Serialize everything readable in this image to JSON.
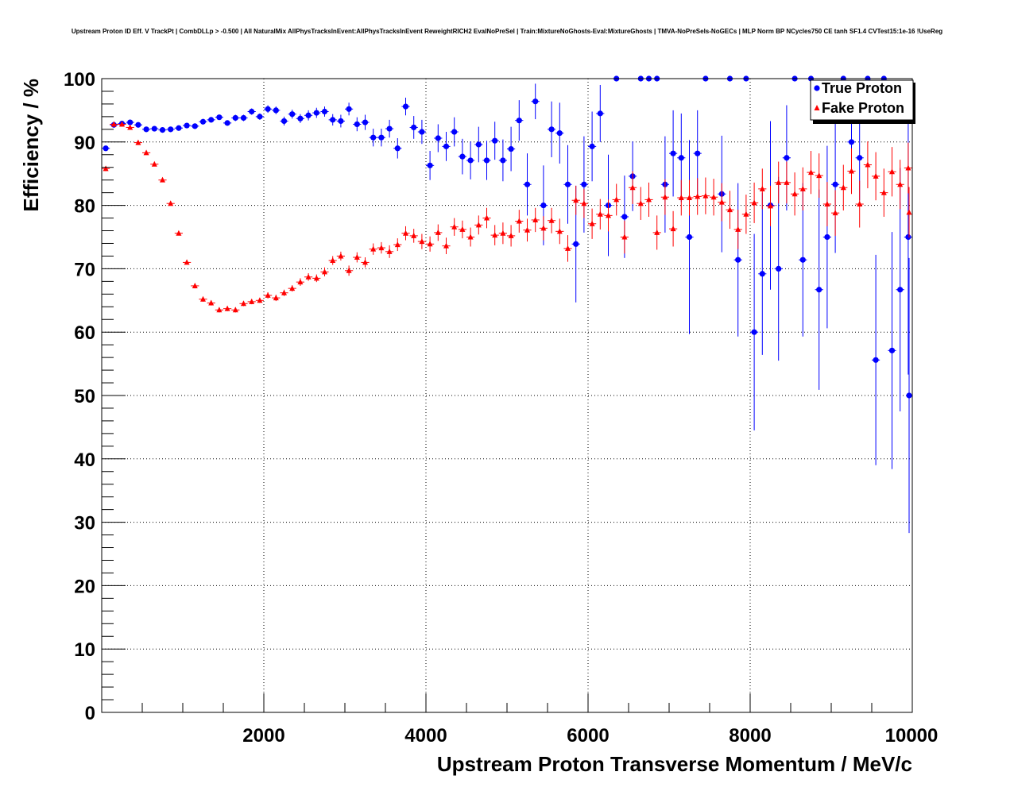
{
  "chart_data": {
    "type": "scatter",
    "title": "Upstream Proton ID Eff. V TrackPt | CombDLLp > -0.500 | All NaturalMix AllPhysTracksInEvent:AllPhysTracksInEvent ReweightRICH2 EvalNoPreSel | Train:MixtureNoGhosts-Eval:MixtureGhosts | TMVA-NoPreSels-NoGECs | MLP Norm BP NCycles750 CE tanh SF1.4 CVTest15:1e-16 !UseReg",
    "xlabel": "Upstream Proton Transverse Momentum / MeV/c",
    "ylabel": "Efficiency / %",
    "xlim": [
      0,
      10000
    ],
    "ylim": [
      0,
      100
    ],
    "x_ticks": [
      "2000",
      "4000",
      "6000",
      "8000",
      "10000"
    ],
    "y_ticks": [
      "0",
      "10",
      "20",
      "30",
      "40",
      "50",
      "60",
      "70",
      "80",
      "90",
      "100"
    ],
    "grid": true,
    "legend_position": "top-right",
    "bin_width": 100,
    "series": [
      {
        "name": "True Proton",
        "color": "#0000ff",
        "marker": "circle",
        "x": [
          50,
          150,
          250,
          350,
          450,
          550,
          650,
          750,
          850,
          950,
          1050,
          1150,
          1250,
          1350,
          1450,
          1550,
          1650,
          1750,
          1850,
          1950,
          2050,
          2150,
          2250,
          2350,
          2450,
          2550,
          2650,
          2750,
          2850,
          2950,
          3050,
          3150,
          3250,
          3350,
          3450,
          3550,
          3650,
          3750,
          3850,
          3950,
          4050,
          4150,
          4250,
          4350,
          4450,
          4550,
          4650,
          4750,
          4850,
          4950,
          5050,
          5150,
          5250,
          5350,
          5450,
          5550,
          5650,
          5750,
          5850,
          5950,
          6050,
          6150,
          6250,
          6350,
          6450,
          6550,
          6650,
          6750,
          6850,
          6950,
          7050,
          7150,
          7250,
          7350,
          7450,
          7650,
          7750,
          7850,
          7950,
          8050,
          8150,
          8250,
          8350,
          8450,
          8550,
          8650,
          8750,
          8850,
          8950,
          9050,
          9150,
          9250,
          9350,
          9450,
          9550,
          9650,
          9750,
          9850,
          9950,
          10050
        ],
        "y": [
          89.0,
          92.7,
          92.9,
          93.1,
          92.7,
          92.0,
          92.1,
          91.9,
          92.0,
          92.2,
          92.6,
          92.5,
          93.2,
          93.5,
          93.9,
          93.0,
          93.8,
          93.8,
          94.8,
          94.0,
          95.2,
          95.0,
          93.3,
          94.4,
          93.7,
          94.2,
          94.6,
          94.8,
          93.5,
          93.3,
          95.2,
          92.8,
          93.1,
          90.7,
          90.7,
          92.1,
          89.0,
          95.6,
          92.3,
          91.6,
          86.3,
          90.6,
          89.3,
          91.6,
          87.7,
          87.1,
          89.6,
          87.1,
          90.2,
          87.1,
          88.9,
          93.4,
          83.3,
          96.4,
          80.0,
          92.0,
          91.4,
          83.3,
          73.9,
          83.3,
          89.3,
          94.5,
          80.0,
          100,
          78.2,
          84.6,
          100,
          100,
          100,
          83.3,
          88.2,
          87.5,
          75.0,
          88.2,
          100,
          81.8,
          100,
          71.4,
          100,
          60.0,
          69.2,
          80.0,
          70.0,
          87.5,
          100,
          71.4,
          100,
          66.7,
          75.0,
          83.3,
          100,
          90.0,
          87.5,
          100,
          55.6,
          100,
          57.1,
          66.7,
          75.0,
          50.0
        ],
        "yerr": [
          0.4,
          0.3,
          0.3,
          0.3,
          0.3,
          0.3,
          0.3,
          0.3,
          0.3,
          0.3,
          0.3,
          0.3,
          0.4,
          0.4,
          0.4,
          0.4,
          0.5,
          0.5,
          0.5,
          0.5,
          0.6,
          0.6,
          0.7,
          0.7,
          0.7,
          0.8,
          0.8,
          0.8,
          0.9,
          1.0,
          1.0,
          1.1,
          1.2,
          1.4,
          1.4,
          1.4,
          1.6,
          1.4,
          1.8,
          1.9,
          2.3,
          2.2,
          2.3,
          2.3,
          2.8,
          3.0,
          2.8,
          3.1,
          3.0,
          3.3,
          3.5,
          3.2,
          4.9,
          2.8,
          6.3,
          4.4,
          4.8,
          6.2,
          9.2,
          7.6,
          5.5,
          4.5,
          8.0,
          0,
          6.5,
          5.5,
          0,
          0,
          0,
          7.6,
          6.8,
          7.0,
          15.3,
          6.8,
          0,
          9.2,
          0,
          12.1,
          0,
          15.5,
          12.8,
          13.3,
          14.5,
          8.3,
          0,
          12.1,
          0,
          15.8,
          14.4,
          10.8,
          0,
          5.5,
          6.7,
          0,
          16.6,
          0,
          18.7,
          19.2,
          21.7,
          21.7
        ]
      },
      {
        "name": "Fake Proton",
        "color": "#ff0000",
        "marker": "triangle",
        "x": [
          50,
          150,
          250,
          350,
          450,
          550,
          650,
          750,
          850,
          950,
          1050,
          1150,
          1250,
          1350,
          1450,
          1550,
          1650,
          1750,
          1850,
          1950,
          2050,
          2150,
          2250,
          2350,
          2450,
          2550,
          2650,
          2750,
          2850,
          2950,
          3050,
          3150,
          3250,
          3350,
          3450,
          3550,
          3650,
          3750,
          3850,
          3950,
          4050,
          4150,
          4250,
          4350,
          4450,
          4550,
          4650,
          4750,
          4850,
          4950,
          5050,
          5150,
          5250,
          5350,
          5450,
          5550,
          5650,
          5750,
          5850,
          5950,
          6050,
          6150,
          6250,
          6350,
          6450,
          6550,
          6650,
          6750,
          6850,
          6950,
          7050,
          7150,
          7250,
          7350,
          7450,
          7550,
          7650,
          7750,
          7850,
          7950,
          8050,
          8150,
          8250,
          8350,
          8450,
          8550,
          8650,
          8750,
          8850,
          8950,
          9050,
          9150,
          9250,
          9350,
          9450,
          9550,
          9650,
          9750,
          9850,
          9950,
          10050
        ],
        "y": [
          85.8,
          92.8,
          92.8,
          92.3,
          89.9,
          88.3,
          86.5,
          84.0,
          80.3,
          75.6,
          71.0,
          67.3,
          65.2,
          64.6,
          63.5,
          63.7,
          63.5,
          64.5,
          64.8,
          65.0,
          65.8,
          65.4,
          66.2,
          66.9,
          67.9,
          68.7,
          68.5,
          69.5,
          71.3,
          72.0,
          69.7,
          71.8,
          71.0,
          73.1,
          73.3,
          72.7,
          73.8,
          75.6,
          75.2,
          74.3,
          73.9,
          75.7,
          73.6,
          76.6,
          76.2,
          75.0,
          76.9,
          78.0,
          75.3,
          75.6,
          75.2,
          77.5,
          76.1,
          77.7,
          76.4,
          77.6,
          75.9,
          73.2,
          80.8,
          80.3,
          77.1,
          78.6,
          78.4,
          80.9,
          75.0,
          82.8,
          80.3,
          80.9,
          75.7,
          81.3,
          76.3,
          81.2,
          81.2,
          81.4,
          81.5,
          81.3,
          80.5,
          79.3,
          76.2,
          78.6,
          80.4,
          82.6,
          79.9,
          83.6,
          83.6,
          81.8,
          82.6,
          85.2,
          84.7,
          80.2,
          78.8,
          82.8,
          85.4,
          80.2,
          86.4,
          84.6,
          82.0,
          85.3,
          83.3,
          85.9,
          78.9
        ],
        "yerr": [
          0.4,
          0.3,
          0.3,
          0.3,
          0.3,
          0.3,
          0.3,
          0.3,
          0.3,
          0.3,
          0.3,
          0.4,
          0.4,
          0.4,
          0.4,
          0.4,
          0.4,
          0.4,
          0.4,
          0.4,
          0.5,
          0.5,
          0.5,
          0.5,
          0.6,
          0.6,
          0.6,
          0.7,
          0.7,
          0.7,
          0.8,
          0.8,
          0.8,
          0.9,
          0.9,
          1.0,
          1.0,
          1.1,
          1.1,
          1.2,
          1.2,
          1.3,
          1.3,
          1.4,
          1.4,
          1.5,
          1.5,
          1.6,
          1.6,
          1.7,
          1.7,
          1.8,
          1.8,
          1.9,
          1.9,
          2.0,
          2.0,
          2.1,
          2.3,
          2.3,
          2.4,
          2.4,
          2.5,
          2.5,
          2.6,
          2.6,
          2.6,
          2.7,
          2.7,
          2.8,
          2.8,
          2.8,
          2.8,
          2.9,
          2.9,
          2.9,
          3.0,
          3.0,
          3.1,
          3.1,
          3.2,
          3.2,
          3.2,
          3.3,
          3.3,
          3.4,
          3.4,
          3.4,
          3.5,
          3.5,
          3.6,
          3.6,
          3.6,
          3.7,
          3.7,
          3.8,
          3.8,
          3.9,
          3.9,
          4.0,
          4.0
        ]
      }
    ]
  }
}
